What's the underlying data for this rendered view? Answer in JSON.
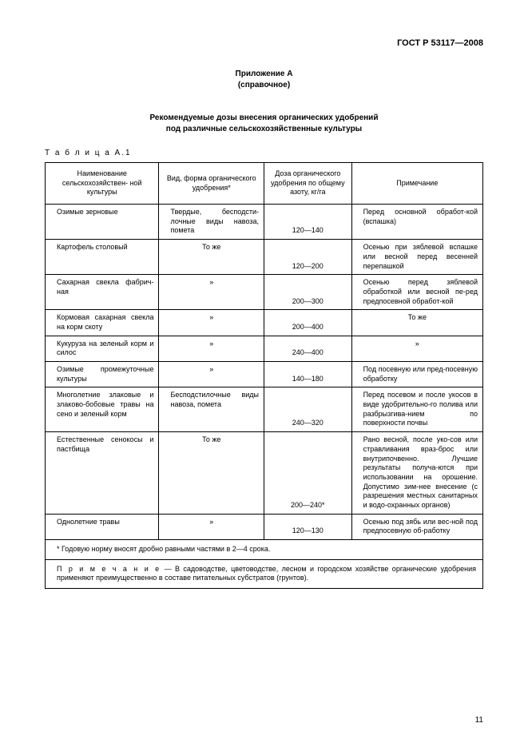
{
  "doc_id": "ГОСТ Р 53117—2008",
  "appendix_label": "Приложение А",
  "appendix_type": "(справочное)",
  "title_line1": "Рекомендуемые дозы внесения органических удобрений",
  "title_line2": "под различные сельскохозяйственные культуры",
  "table_label": "Т а б л и ц а  А.1",
  "columns": {
    "c1": "Наименование сельскохозяйствен-\nной культуры",
    "c2": "Вид, форма органического удобрения*",
    "c3": "Доза органического удобрения по общему азоту, кг/га",
    "c4": "Примечание"
  },
  "rows": [
    {
      "name": "Озимые зерновые",
      "form": "Твердые, бесподсти-лочные виды навоза, помета",
      "form_center": false,
      "dose": "120—140",
      "note": "Перед основной обработ-кой (вспашка)",
      "note_center": false
    },
    {
      "name": "Картофель столовый",
      "form": "То же",
      "form_center": true,
      "dose": "120—200",
      "note": "Осенью при зяблевой вспашке или весной перед весенней перепашкой",
      "note_center": false
    },
    {
      "name": "Сахарная свекла фабрич-ная",
      "form": "»",
      "form_center": true,
      "dose": "200—300",
      "note": "Осенью перед зяблевой обработкой или весной пе-ред предпосевной обработ-кой",
      "note_center": false
    },
    {
      "name": "Кормовая сахарная свекла на корм скоту",
      "form": "»",
      "form_center": true,
      "dose": "200—400",
      "note": "То же",
      "note_center": true
    },
    {
      "name": "Кукуруза на зеленый корм и силос",
      "form": "»",
      "form_center": true,
      "dose": "240—400",
      "note": "»",
      "note_center": true
    },
    {
      "name": "Озимые промежуточные культуры",
      "form": "»",
      "form_center": true,
      "dose": "140—180",
      "note": "Под посевную или пред-посевную обработку",
      "note_center": false
    },
    {
      "name": "Многолетние злаковые и злаково-бобовые травы на сено и зеленый корм",
      "form": "Бесподстилочные виды навоза, помета",
      "form_center": false,
      "dose": "240—320",
      "note": "Перед посевом и после укосов в виде удобрительно-го полива или разбрызгива-нием по поверхности почвы",
      "note_center": false
    },
    {
      "name": "Естественные сенокосы и пастбища",
      "form": "То же",
      "form_center": true,
      "dose": "200—240*",
      "note": "Рано весной, после уко-сов или стравливания враз-брос или внутрипочвенно. Лучшие результаты получа-ются при использовании на орошение. Допустимо зим-нее внесение (с разрешения местных санитарных и водо-охранных органов)",
      "note_center": false
    },
    {
      "name": "Однолетние травы",
      "form": "»",
      "form_center": true,
      "dose": "120—130",
      "note": "Осенью под зябь или вес-ной под предпосевную об-работку",
      "note_center": false
    }
  ],
  "footnote": "* Годовую норму вносят дробно равными частями в 2—4 срока.",
  "table_note_label": "П р и м е ч а н и е",
  "table_note": " — В садоводстве, цветоводстве, лесном и городском хозяйстве органические удобрения применяют преимущественно в составе питательных субстратов (грунтов).",
  "page_number": "11"
}
